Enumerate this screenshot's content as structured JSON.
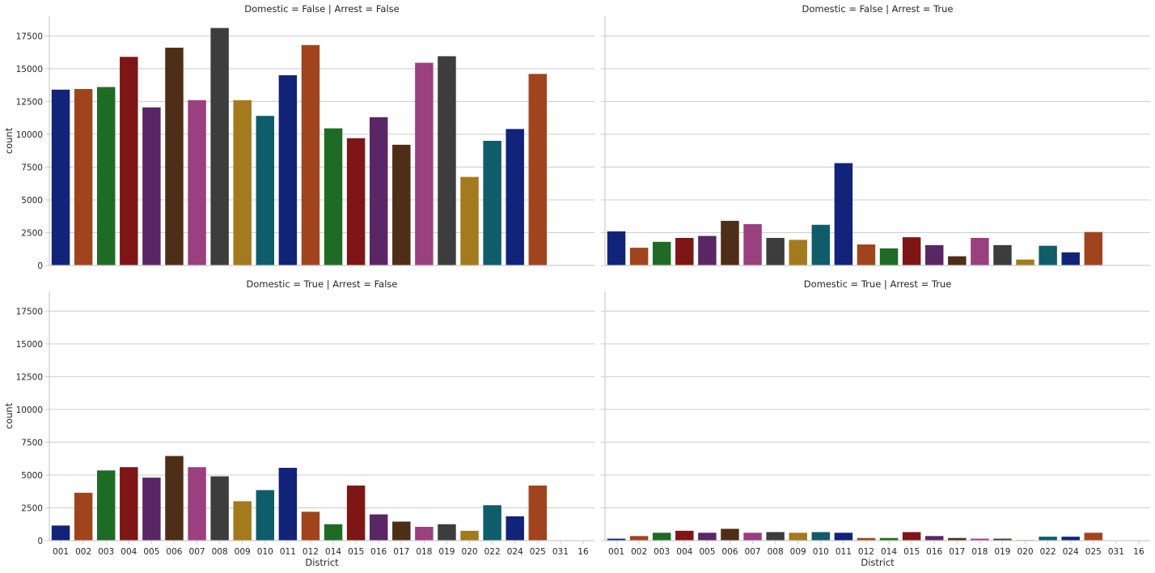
{
  "figure": {
    "xlabel": "District",
    "ylabel": "count"
  },
  "chart_data": {
    "type": "bar",
    "layout": "2x2 facet grid (rows: Domestic, columns: Arrest)",
    "xlabel": "District",
    "ylabel": "count",
    "ylim": [
      0,
      19000
    ],
    "yticks": [
      0,
      2500,
      5000,
      7500,
      10000,
      12500,
      15000,
      17500
    ],
    "grid": true,
    "categories": [
      "001",
      "002",
      "003",
      "004",
      "005",
      "006",
      "007",
      "008",
      "009",
      "010",
      "011",
      "012",
      "014",
      "015",
      "016",
      "017",
      "018",
      "019",
      "020",
      "022",
      "024",
      "025",
      "031",
      "16"
    ],
    "colors": [
      "#12237a",
      "#a0441d",
      "#1e6b25",
      "#7e1616",
      "#5a2666",
      "#4f2e17",
      "#9a407f",
      "#3d3d3d",
      "#a37a1e",
      "#0f5c6b",
      "#12237a",
      "#a0441d",
      "#1e6b25",
      "#7e1616",
      "#5a2666",
      "#4f2e17",
      "#9a407f",
      "#3d3d3d",
      "#a37a1e",
      "#0f5c6b",
      "#12237a",
      "#a0441d",
      "#1e6b25",
      "#7e1616"
    ],
    "panels": [
      {
        "title": "Domestic = False | Arrest = False",
        "values": [
          13400,
          13450,
          13600,
          15900,
          12050,
          16600,
          12600,
          18100,
          12600,
          11400,
          14500,
          16800,
          10450,
          9700,
          11300,
          9200,
          15450,
          15950,
          6750,
          9500,
          10400,
          14600,
          0,
          0
        ]
      },
      {
        "title": "Domestic = False | Arrest = True",
        "values": [
          2600,
          1350,
          1800,
          2100,
          2250,
          3400,
          3150,
          2100,
          1950,
          3100,
          7800,
          1600,
          1300,
          2150,
          1550,
          700,
          2100,
          1550,
          450,
          1500,
          1000,
          2550,
          0,
          0
        ]
      },
      {
        "title": "Domestic = True | Arrest = False",
        "values": [
          1150,
          3650,
          5350,
          5600,
          4800,
          6450,
          5600,
          4900,
          3000,
          3850,
          5550,
          2200,
          1250,
          4200,
          2000,
          1450,
          1050,
          1250,
          750,
          2700,
          1850,
          4200,
          0,
          0
        ]
      },
      {
        "title": "Domestic = True | Arrest = True",
        "values": [
          150,
          350,
          600,
          750,
          600,
          900,
          600,
          650,
          600,
          650,
          600,
          200,
          200,
          650,
          350,
          200,
          150,
          150,
          50,
          300,
          300,
          600,
          0,
          0
        ]
      }
    ]
  }
}
